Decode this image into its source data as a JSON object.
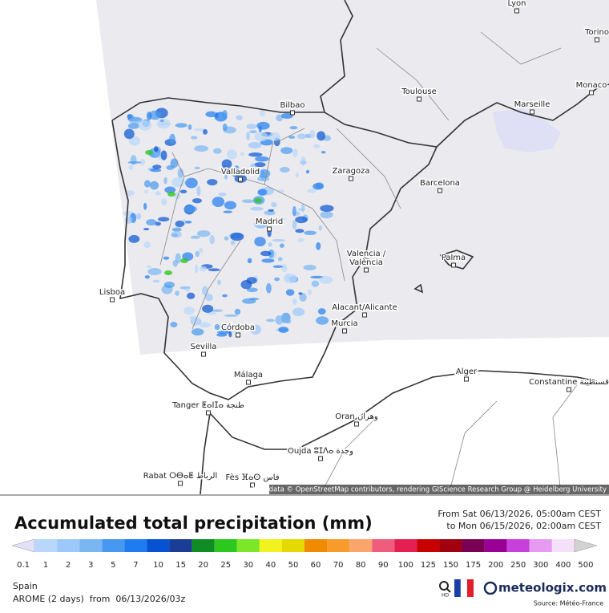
{
  "map": {
    "labels": [
      "Lyon",
      "Torino",
      "Monaco",
      "Toulouse",
      "Marseille",
      "Bilbao",
      "Zaragoza",
      "Valladolid",
      "Barcelona",
      "Madrid",
      "Valencia /",
      "València",
      "Palma",
      "Lisboa",
      "Alacant/Alicante",
      "Murcia",
      "Córdoba",
      "Sevilla",
      "Málaga",
      "Alger",
      "Constantine قسنطينة",
      "Tanger ⵟⴰⵏⵊⴰ طنجة",
      "Oran وهران",
      "Oujda ⵓⵊⴷⴰ وجدة",
      "Rabat ⵔⴱⴰⵟ الرباط",
      "Fès ⴼⴰⵙ فاس"
    ],
    "attribution": "Map data © OpenStreetMap contributors, rendering GIScience Research Group @ Heidelberg University"
  },
  "legend": {
    "title": "Accumulated total precipitation (mm)",
    "period": [
      "From Sat 06/13/2026, 05:00am CEST",
      "to Mon 06/15/2026, 02:00am CEST"
    ],
    "scale": {
      "labels": [
        0.1,
        1,
        2,
        3,
        5,
        7,
        10,
        15,
        20,
        25,
        30,
        40,
        50,
        60,
        70,
        80,
        90,
        100,
        125,
        150,
        175,
        200,
        250,
        300,
        400,
        500
      ],
      "colors": [
        "#e1e1f7",
        "#b9d7fa",
        "#9cc8fa",
        "#7ab6f2",
        "#4698f0",
        "#1f7cf0",
        "#0652d2",
        "#1c3d95",
        "#0f8c23",
        "#2dc81e",
        "#7ce628",
        "#f2f21f",
        "#e4d900",
        "#f08a00",
        "#f99a2c",
        "#f9a56c",
        "#f05c7c",
        "#e41f52",
        "#c80000",
        "#a00010",
        "#7a0054",
        "#9a0096",
        "#c840dc",
        "#e69af0",
        "#f5e0fa",
        "#d2d2d2"
      ]
    }
  },
  "footer": {
    "region": "Spain",
    "model": "AROME (2 days)  from  06/13/2026/03z",
    "hd": "HD",
    "logo": "meteologix.com",
    "source": "Source: Météo-France"
  }
}
